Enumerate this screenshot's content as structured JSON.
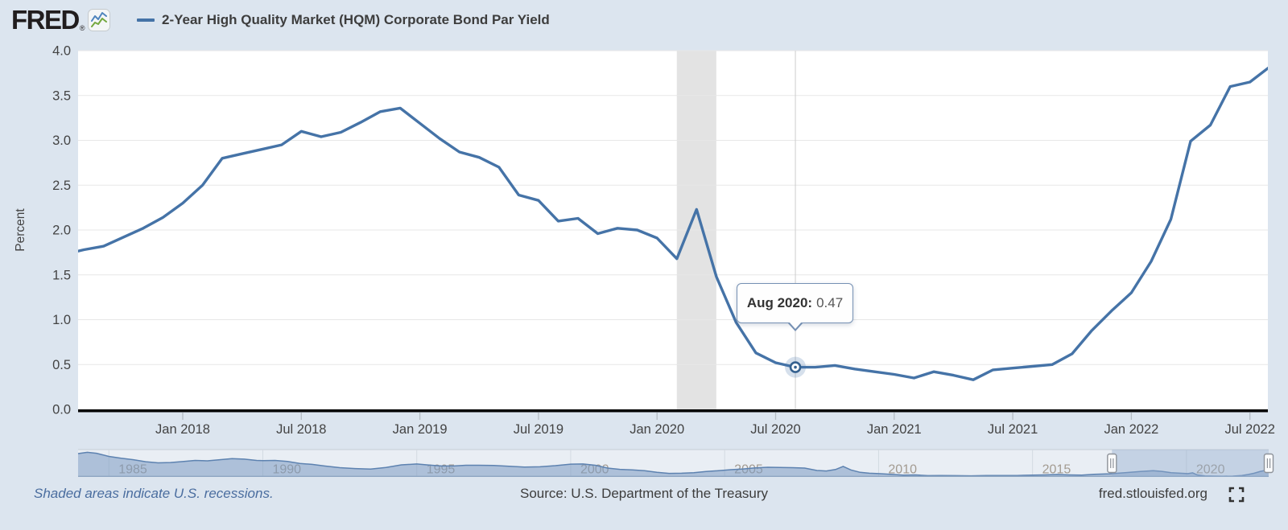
{
  "header": {
    "logo_text": "FRED",
    "registered_mark": "®",
    "series_title": "2-Year High Quality Market (HQM) Corporate Bond Par Yield",
    "legend_color": "#4573a7"
  },
  "tooltip": {
    "label": "Aug 2020:",
    "value": "0.47"
  },
  "footer": {
    "recession_note": "Shaded areas indicate U.S. recessions.",
    "source": "Source: U.S. Department of the Treasury",
    "site_link": "fred.stlouisfed.org"
  },
  "y_axis": {
    "title": "Percent",
    "tick_labels": [
      "0.0",
      "0.5",
      "1.0",
      "1.5",
      "2.0",
      "2.5",
      "3.0",
      "3.5",
      "4.0"
    ]
  },
  "x_axis": {
    "tick_labels": [
      [
        "Jan 2018",
        5
      ],
      [
        "Jul 2018",
        11
      ],
      [
        "Jan 2019",
        17
      ],
      [
        "Jul 2019",
        23
      ],
      [
        "Jan 2020",
        29
      ],
      [
        "Jul 2020",
        35
      ],
      [
        "Jan 2021",
        41
      ],
      [
        "Jul 2021",
        47
      ],
      [
        "Jan 2022",
        53
      ],
      [
        "Jul 2022",
        59
      ]
    ]
  },
  "chart_data": {
    "type": "line",
    "title": "2-Year High Quality Market (HQM) Corporate Bond Par Yield",
    "ylabel": "Percent",
    "ylim": [
      0,
      4
    ],
    "x_start": "2017-08",
    "x_end": "2022-08",
    "frequency": "monthly",
    "line_color": "#4573a7",
    "grid": "horizontal-only",
    "values": [
      1.78,
      1.82,
      1.92,
      2.02,
      2.14,
      2.3,
      2.5,
      2.8,
      2.85,
      2.9,
      2.95,
      3.1,
      3.04,
      3.09,
      3.2,
      3.32,
      3.36,
      3.19,
      3.02,
      2.87,
      2.81,
      2.7,
      2.39,
      2.33,
      2.1,
      2.13,
      1.96,
      2.02,
      2.0,
      1.91,
      1.68,
      2.23,
      1.48,
      0.97,
      0.63,
      0.52,
      0.47,
      0.47,
      0.49,
      0.45,
      0.42,
      0.39,
      0.35,
      0.42,
      0.38,
      0.33,
      0.44,
      0.46,
      0.48,
      0.5,
      0.62,
      0.88,
      1.1,
      1.3,
      1.65,
      2.12,
      2.99,
      3.17,
      3.6,
      3.65,
      3.82
    ],
    "recession_band": {
      "start_month_index": 30,
      "end_month_index": 32,
      "meaning": "U.S. recession (shaded area)"
    },
    "highlight_point": {
      "date": "Aug 2020",
      "month_index": 36,
      "value": 0.47
    }
  },
  "navigator": {
    "year_ticks": [
      "1985",
      "1990",
      "1995",
      "2000",
      "2005",
      "2010",
      "2015",
      "2020"
    ],
    "range_start_year": 1984,
    "range_end_year": 2022.67,
    "selected_start_year": 2017.58,
    "selected_end_year": 2022.67,
    "series": [
      [
        1984,
        12.6
      ],
      [
        1984.3,
        13.3
      ],
      [
        1984.6,
        12.8
      ],
      [
        1985,
        11.1
      ],
      [
        1985.4,
        10.1
      ],
      [
        1985.8,
        9.3
      ],
      [
        1986.2,
        8.2
      ],
      [
        1986.6,
        7.6
      ],
      [
        1987,
        7.8
      ],
      [
        1987.4,
        8.3
      ],
      [
        1987.8,
        8.9
      ],
      [
        1988.2,
        8.7
      ],
      [
        1988.6,
        9.3
      ],
      [
        1989,
        9.9
      ],
      [
        1989.4,
        9.6
      ],
      [
        1989.8,
        8.9
      ],
      [
        1990,
        8.8
      ],
      [
        1990.4,
        8.9
      ],
      [
        1990.8,
        8.4
      ],
      [
        1991.2,
        7.3
      ],
      [
        1991.6,
        6.8
      ],
      [
        1992,
        5.9
      ],
      [
        1992.5,
        5.0
      ],
      [
        1993,
        4.5
      ],
      [
        1993.5,
        4.2
      ],
      [
        1994,
        5.1
      ],
      [
        1994.5,
        6.5
      ],
      [
        1995,
        7.0
      ],
      [
        1995.4,
        6.4
      ],
      [
        1995.8,
        5.9
      ],
      [
        1996.2,
        5.9
      ],
      [
        1996.6,
        6.3
      ],
      [
        1997,
        6.3
      ],
      [
        1997.5,
        6.2
      ],
      [
        1998,
        5.8
      ],
      [
        1998.5,
        5.3
      ],
      [
        1999,
        5.5
      ],
      [
        1999.5,
        6.1
      ],
      [
        2000,
        6.9
      ],
      [
        2000.4,
        7.0
      ],
      [
        2000.8,
        6.3
      ],
      [
        2001.2,
        4.8
      ],
      [
        2001.6,
        4.1
      ],
      [
        2002,
        3.8
      ],
      [
        2002.4,
        3.4
      ],
      [
        2002.8,
        2.5
      ],
      [
        2003.2,
        1.9
      ],
      [
        2003.6,
        2.0
      ],
      [
        2004,
        2.3
      ],
      [
        2004.4,
        2.9
      ],
      [
        2004.8,
        3.4
      ],
      [
        2005.2,
        3.9
      ],
      [
        2005.6,
        4.3
      ],
      [
        2006,
        4.9
      ],
      [
        2006.4,
        5.2
      ],
      [
        2006.8,
        5.1
      ],
      [
        2007.2,
        5.0
      ],
      [
        2007.6,
        4.8
      ],
      [
        2008,
        3.5
      ],
      [
        2008.3,
        3.2
      ],
      [
        2008.6,
        4.0
      ],
      [
        2008.85,
        5.7
      ],
      [
        2009.1,
        3.8
      ],
      [
        2009.4,
        2.5
      ],
      [
        2009.7,
        2.0
      ],
      [
        2010,
        1.8
      ],
      [
        2010.4,
        1.4
      ],
      [
        2010.8,
        1.0
      ],
      [
        2011.2,
        1.1
      ],
      [
        2011.6,
        0.7
      ],
      [
        2012,
        0.8
      ],
      [
        2012.5,
        0.7
      ],
      [
        2013,
        0.6
      ],
      [
        2013.5,
        0.8
      ],
      [
        2014,
        0.8
      ],
      [
        2014.5,
        0.8
      ],
      [
        2015,
        1.0
      ],
      [
        2015.4,
        1.1
      ],
      [
        2015.8,
        1.3
      ],
      [
        2016.2,
        1.1
      ],
      [
        2016.6,
        1.0
      ],
      [
        2017,
        1.4
      ],
      [
        2017.5,
        1.7
      ],
      [
        2018,
        2.3
      ],
      [
        2018.5,
        2.9
      ],
      [
        2018.92,
        3.36
      ],
      [
        2019.2,
        3.0
      ],
      [
        2019.5,
        2.3
      ],
      [
        2019.8,
        2.0
      ],
      [
        2020.05,
        1.8
      ],
      [
        2020.2,
        2.2
      ],
      [
        2020.35,
        1.1
      ],
      [
        2020.6,
        0.55
      ],
      [
        2020.9,
        0.45
      ],
      [
        2021.2,
        0.4
      ],
      [
        2021.5,
        0.42
      ],
      [
        2021.8,
        0.75
      ],
      [
        2022,
        1.3
      ],
      [
        2022.2,
        2.0
      ],
      [
        2022.4,
        3.0
      ],
      [
        2022.55,
        3.5
      ],
      [
        2022.66,
        3.8
      ]
    ]
  }
}
